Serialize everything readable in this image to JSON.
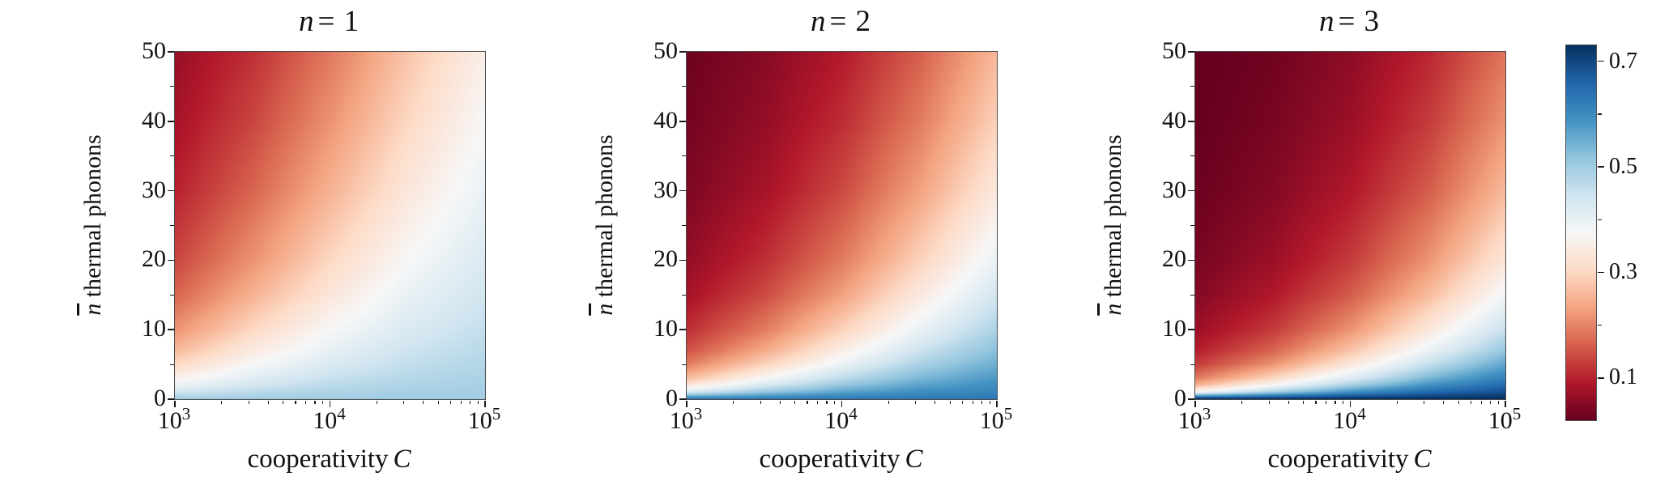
{
  "figure": {
    "background": "#ffffff",
    "axis_color": "#4a4a4a",
    "tick_color": "#1a1a1a",
    "text_color": "#111111"
  },
  "axes": {
    "ylabel_math": "n",
    "ylabel_text": " thermal phonons",
    "xlabel_text": "cooperativity",
    "xlabel_math": "C",
    "x_ticks": [
      "10^3",
      "10^4",
      "10^5"
    ],
    "y_ticks": [
      "50",
      "40",
      "30",
      "20",
      "10",
      "0"
    ]
  },
  "colorbar": {
    "labels": [
      "0.7",
      "0.5",
      "0.3",
      "0.1"
    ]
  },
  "chart_data": {
    "type": "heatmap",
    "title": "",
    "xlabel": "cooperativity C",
    "ylabel": "n-bar thermal phonons",
    "x_scale": "log",
    "x": [
      1000,
      3162,
      10000,
      31623,
      100000
    ],
    "xlim": [
      1000,
      100000
    ],
    "y": [
      0,
      1,
      2,
      3,
      5,
      7,
      10,
      15,
      20,
      30,
      40,
      50
    ],
    "ylim": [
      0,
      50
    ],
    "vmin": 0.02,
    "vmax": 0.73,
    "colormap": "RdBu",
    "colormap_stops": [
      "#67001f",
      "#b2182b",
      "#d6604d",
      "#f4a582",
      "#fddbc7",
      "#f7f7f7",
      "#d1e5f0",
      "#92c5de",
      "#4393c3",
      "#2166ac",
      "#053061"
    ],
    "colorbar_ticks": [
      0.1,
      0.2,
      0.3,
      0.4,
      0.5,
      0.6,
      0.7
    ],
    "colorbar_labeled_ticks": [
      0.1,
      0.3,
      0.5,
      0.7
    ],
    "legend_position": "right-colorbar",
    "grid": false,
    "panels": [
      {
        "n": 1,
        "title_var": "n",
        "title_rest": "= 1",
        "values": [
          [
            0.5,
            0.5,
            0.5,
            0.5,
            0.5
          ],
          [
            0.441,
            0.469,
            0.484,
            0.492,
            0.496
          ],
          [
            0.395,
            0.441,
            0.469,
            0.484,
            0.492
          ],
          [
            0.357,
            0.417,
            0.454,
            0.476,
            0.488
          ],
          [
            0.3,
            0.375,
            0.428,
            0.461,
            0.48
          ],
          [
            0.258,
            0.341,
            0.405,
            0.448,
            0.472
          ],
          [
            0.214,
            0.3,
            0.375,
            0.428,
            0.461
          ],
          [
            0.167,
            0.25,
            0.333,
            0.4,
            0.444
          ],
          [
            0.136,
            0.214,
            0.3,
            0.375,
            0.428
          ],
          [
            0.1,
            0.167,
            0.25,
            0.333,
            0.4
          ],
          [
            0.079,
            0.136,
            0.214,
            0.3,
            0.375
          ],
          [
            0.065,
            0.115,
            0.187,
            0.273,
            0.353
          ]
        ]
      },
      {
        "n": 2,
        "title_var": "n",
        "title_rest": "= 2",
        "values": [
          [
            0.63,
            0.63,
            0.63,
            0.63,
            0.63
          ],
          [
            0.43,
            0.511,
            0.564,
            0.595,
            0.612
          ],
          [
            0.326,
            0.43,
            0.511,
            0.564,
            0.595
          ],
          [
            0.263,
            0.371,
            0.467,
            0.536,
            0.579
          ],
          [
            0.19,
            0.292,
            0.398,
            0.488,
            0.55
          ],
          [
            0.148,
            0.24,
            0.347,
            0.448,
            0.523
          ],
          [
            0.112,
            0.19,
            0.291,
            0.398,
            0.488
          ],
          [
            0.079,
            0.141,
            0.229,
            0.337,
            0.439
          ],
          [
            0.061,
            0.112,
            0.189,
            0.291,
            0.398
          ],
          [
            0.042,
            0.079,
            0.14,
            0.23,
            0.336
          ],
          [
            0.032,
            0.061,
            0.111,
            0.189,
            0.291
          ],
          [
            0.026,
            0.05,
            0.092,
            0.161,
            0.257
          ]
        ]
      },
      {
        "n": 3,
        "title_var": "n",
        "title_rest": "= 3",
        "values": [
          [
            0.73,
            0.73,
            0.73,
            0.73,
            0.73
          ],
          [
            0.372,
            0.493,
            0.588,
            0.651,
            0.688
          ],
          [
            0.249,
            0.372,
            0.492,
            0.588,
            0.651
          ],
          [
            0.188,
            0.299,
            0.423,
            0.536,
            0.618
          ],
          [
            0.125,
            0.214,
            0.331,
            0.456,
            0.561
          ],
          [
            0.094,
            0.167,
            0.271,
            0.396,
            0.513
          ],
          [
            0.069,
            0.125,
            0.214,
            0.331,
            0.455
          ],
          [
            0.047,
            0.089,
            0.158,
            0.26,
            0.383
          ],
          [
            0.036,
            0.069,
            0.125,
            0.214,
            0.331
          ],
          [
            0.024,
            0.047,
            0.089,
            0.158,
            0.26
          ],
          [
            0.018,
            0.036,
            0.068,
            0.125,
            0.214
          ],
          [
            0.015,
            0.029,
            0.056,
            0.104,
            0.182
          ]
        ]
      }
    ]
  }
}
